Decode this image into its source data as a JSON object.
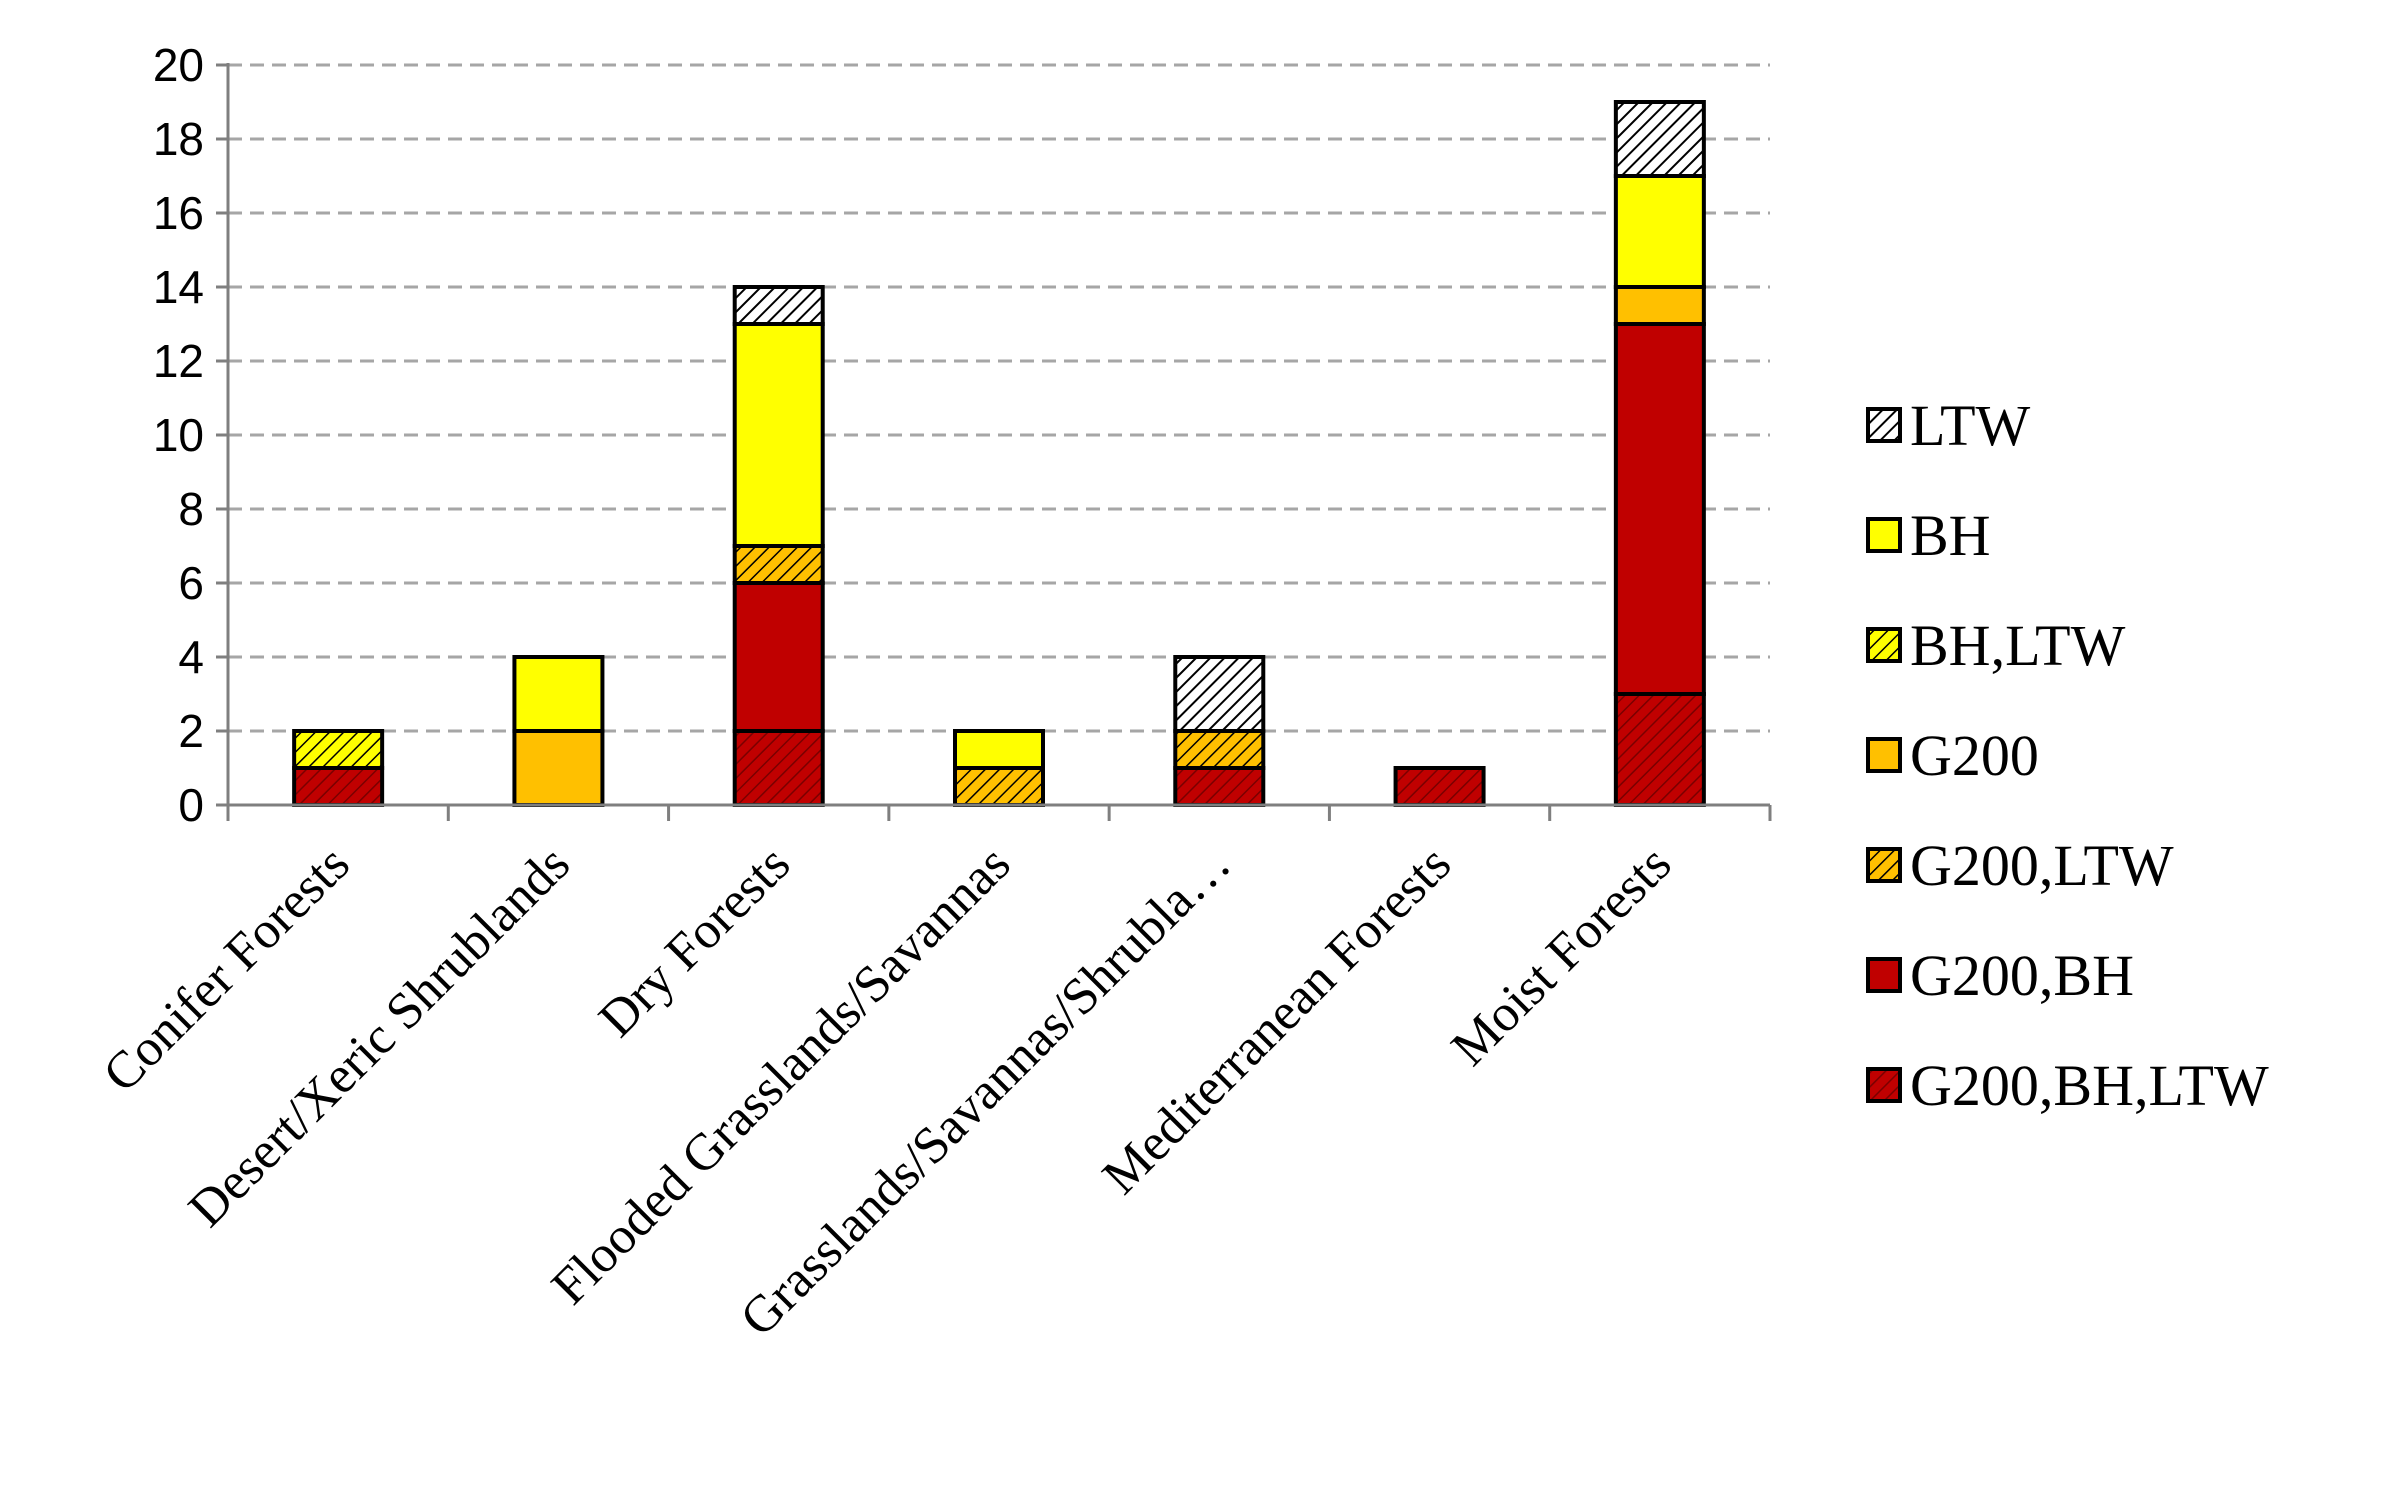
{
  "colors": {
    "LTW": "#ffffff",
    "BH": "#ffff00",
    "BH,LTW": "#ffff00",
    "G200": "#ffc000",
    "G200,LTW": "#ffc000",
    "G200,BH": "#c00000",
    "G200,BH,LTW": "#c00000"
  },
  "chart_data": {
    "type": "bar",
    "stacked": true,
    "categories": [
      "Conifer Forests",
      "Desert/Xeric Shrublands",
      "Dry Forests",
      "Flooded Grasslands/Savannas",
      "Grasslands/Savannas/Shrubla…",
      "Mediterranean Forests",
      "Moist Forests"
    ],
    "series": [
      {
        "name": "G200,BH,LTW",
        "values": [
          1,
          0,
          2,
          0,
          1,
          1,
          3
        ],
        "hatched": true
      },
      {
        "name": "G200,BH",
        "values": [
          0,
          0,
          4,
          0,
          0,
          0,
          10
        ],
        "hatched": false
      },
      {
        "name": "G200,LTW",
        "values": [
          0,
          0,
          1,
          1,
          1,
          0,
          0
        ],
        "hatched": true
      },
      {
        "name": "G200",
        "values": [
          0,
          2,
          0,
          0,
          0,
          0,
          1
        ],
        "hatched": false
      },
      {
        "name": "BH,LTW",
        "values": [
          1,
          0,
          0,
          0,
          0,
          0,
          0
        ],
        "hatched": true
      },
      {
        "name": "BH",
        "values": [
          0,
          2,
          6,
          1,
          0,
          0,
          3
        ],
        "hatched": false
      },
      {
        "name": "LTW",
        "values": [
          0,
          0,
          1,
          0,
          2,
          0,
          2
        ],
        "hatched": true
      }
    ],
    "legend_order": [
      "LTW",
      "BH",
      "BH,LTW",
      "G200",
      "G200,LTW",
      "G200,BH",
      "G200,BH,LTW"
    ],
    "yticks": [
      "0",
      "2",
      "4",
      "6",
      "8",
      "10",
      "12",
      "14",
      "16",
      "18",
      "20"
    ],
    "ylim": [
      0,
      20
    ],
    "grid": "horizontal dashed",
    "legend_position": "right"
  }
}
